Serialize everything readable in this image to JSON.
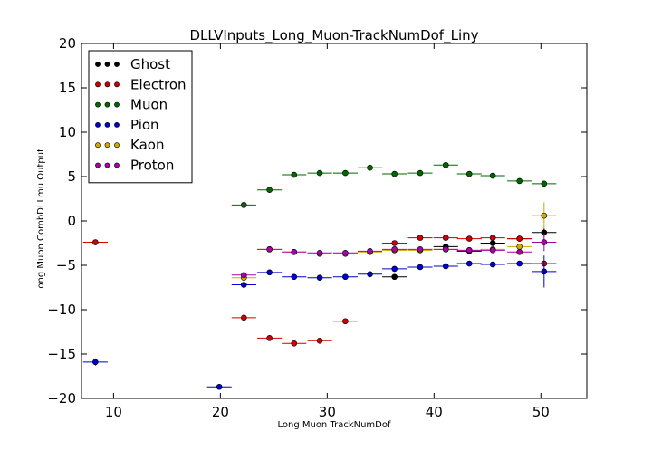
{
  "chart_data": {
    "type": "scatter",
    "title": "DLLVInputs_Long_Muon-TrackNumDof_Liny",
    "xlabel": "Long Muon TrackNumDof",
    "ylabel": "Long Muon CombDLLmu Output",
    "xlim": [
      7,
      54.3
    ],
    "ylim": [
      -20,
      20
    ],
    "xticks": [
      10,
      20,
      30,
      40,
      50
    ],
    "yticks": [
      -20,
      -15,
      -10,
      -5,
      0,
      5,
      10,
      15,
      20
    ],
    "xtick_labels": [
      "10",
      "20",
      "30",
      "40",
      "50"
    ],
    "ytick_labels": [
      "−20",
      "−15",
      "−10",
      "−5",
      "0",
      "5",
      "10",
      "15",
      "20"
    ],
    "grid": false,
    "legend_position": "upper-left",
    "bin_half_width": 1.15,
    "series": [
      {
        "name": "Ghost",
        "color": "#000000",
        "points": [
          {
            "x": 36.3,
            "y": -6.3,
            "yerr": 0.2
          },
          {
            "x": 41.1,
            "y": -2.9,
            "yerr": 0.2
          },
          {
            "x": 43.3,
            "y": -3.4,
            "yerr": 0.2
          },
          {
            "x": 45.5,
            "y": -2.5,
            "yerr": 0.2
          },
          {
            "x": 48.0,
            "y": -2.0,
            "yerr": 0.2
          },
          {
            "x": 50.3,
            "y": -1.3,
            "yerr": 0.5
          }
        ]
      },
      {
        "name": "Electron",
        "color": "#cc0000",
        "points": [
          {
            "x": 8.3,
            "y": -2.4,
            "yerr": 0.2
          },
          {
            "x": 22.2,
            "y": -10.9,
            "yerr": 0.2
          },
          {
            "x": 24.6,
            "y": -13.2,
            "yerr": 0.2
          },
          {
            "x": 26.9,
            "y": -13.8,
            "yerr": 0.2
          },
          {
            "x": 29.3,
            "y": -13.5,
            "yerr": 0.2
          },
          {
            "x": 31.7,
            "y": -11.3,
            "yerr": 0.2
          },
          {
            "x": 36.3,
            "y": -2.5,
            "yerr": 0.2
          },
          {
            "x": 38.7,
            "y": -1.9,
            "yerr": 0.2
          },
          {
            "x": 41.1,
            "y": -1.9,
            "yerr": 0.2
          },
          {
            "x": 43.3,
            "y": -2.0,
            "yerr": 0.2
          },
          {
            "x": 45.5,
            "y": -1.9,
            "yerr": 0.2
          },
          {
            "x": 48.0,
            "y": -2.0,
            "yerr": 0.2
          },
          {
            "x": 50.3,
            "y": -4.8,
            "yerr": 0.3
          }
        ]
      },
      {
        "name": "Muon",
        "color": "#006600",
        "points": [
          {
            "x": 22.2,
            "y": 1.8,
            "yerr": 0.1
          },
          {
            "x": 24.6,
            "y": 3.5,
            "yerr": 0.1
          },
          {
            "x": 26.9,
            "y": 5.2,
            "yerr": 0.1
          },
          {
            "x": 29.3,
            "y": 5.4,
            "yerr": 0.1
          },
          {
            "x": 31.7,
            "y": 5.4,
            "yerr": 0.1
          },
          {
            "x": 34.0,
            "y": 6.0,
            "yerr": 0.1
          },
          {
            "x": 36.3,
            "y": 5.3,
            "yerr": 0.1
          },
          {
            "x": 38.7,
            "y": 5.4,
            "yerr": 0.1
          },
          {
            "x": 41.1,
            "y": 6.3,
            "yerr": 0.1
          },
          {
            "x": 43.3,
            "y": 5.3,
            "yerr": 0.1
          },
          {
            "x": 45.5,
            "y": 5.1,
            "yerr": 0.1
          },
          {
            "x": 48.0,
            "y": 4.5,
            "yerr": 0.1
          },
          {
            "x": 50.3,
            "y": 4.2,
            "yerr": 0.1
          }
        ]
      },
      {
        "name": "Pion",
        "color": "#0000cc",
        "points": [
          {
            "x": 8.3,
            "y": -15.9,
            "yerr": 0.4
          },
          {
            "x": 19.9,
            "y": -18.7,
            "yerr": 0.2
          },
          {
            "x": 22.2,
            "y": -7.2,
            "yerr": 0.1
          },
          {
            "x": 24.6,
            "y": -5.8,
            "yerr": 0.1
          },
          {
            "x": 26.9,
            "y": -6.3,
            "yerr": 0.1
          },
          {
            "x": 29.3,
            "y": -6.4,
            "yerr": 0.1
          },
          {
            "x": 31.7,
            "y": -6.3,
            "yerr": 0.1
          },
          {
            "x": 34.0,
            "y": -6.0,
            "yerr": 0.1
          },
          {
            "x": 36.3,
            "y": -5.4,
            "yerr": 0.1
          },
          {
            "x": 38.7,
            "y": -5.2,
            "yerr": 0.1
          },
          {
            "x": 41.1,
            "y": -5.1,
            "yerr": 0.1
          },
          {
            "x": 43.3,
            "y": -4.8,
            "yerr": 0.1
          },
          {
            "x": 45.5,
            "y": -4.9,
            "yerr": 0.1
          },
          {
            "x": 48.0,
            "y": -4.8,
            "yerr": 0.1
          },
          {
            "x": 50.3,
            "y": -5.7,
            "yerr": 1.8
          }
        ]
      },
      {
        "name": "Kaon",
        "color": "#ccaa00",
        "points": [
          {
            "x": 22.2,
            "y": -6.4,
            "yerr": 0.2
          },
          {
            "x": 24.6,
            "y": -3.2,
            "yerr": 0.2
          },
          {
            "x": 26.9,
            "y": -3.5,
            "yerr": 0.1
          },
          {
            "x": 29.3,
            "y": -3.7,
            "yerr": 0.1
          },
          {
            "x": 31.7,
            "y": -3.7,
            "yerr": 0.1
          },
          {
            "x": 34.0,
            "y": -3.5,
            "yerr": 0.1
          },
          {
            "x": 36.3,
            "y": -3.3,
            "yerr": 0.1
          },
          {
            "x": 38.7,
            "y": -3.3,
            "yerr": 0.1
          },
          {
            "x": 41.1,
            "y": -3.2,
            "yerr": 0.1
          },
          {
            "x": 43.3,
            "y": -3.3,
            "yerr": 0.1
          },
          {
            "x": 45.5,
            "y": -3.2,
            "yerr": 0.1
          },
          {
            "x": 48.0,
            "y": -2.9,
            "yerr": 0.2
          },
          {
            "x": 50.3,
            "y": 0.6,
            "yerr": 1.5
          }
        ]
      },
      {
        "name": "Proton",
        "color": "#aa00aa",
        "points": [
          {
            "x": 22.2,
            "y": -6.1,
            "yerr": 0.2
          },
          {
            "x": 24.6,
            "y": -3.2,
            "yerr": 0.2
          },
          {
            "x": 26.9,
            "y": -3.5,
            "yerr": 0.1
          },
          {
            "x": 29.3,
            "y": -3.6,
            "yerr": 0.1
          },
          {
            "x": 31.7,
            "y": -3.6,
            "yerr": 0.1
          },
          {
            "x": 34.0,
            "y": -3.4,
            "yerr": 0.1
          },
          {
            "x": 36.3,
            "y": -3.2,
            "yerr": 0.1
          },
          {
            "x": 38.7,
            "y": -3.2,
            "yerr": 0.1
          },
          {
            "x": 41.1,
            "y": -3.2,
            "yerr": 0.1
          },
          {
            "x": 43.3,
            "y": -3.3,
            "yerr": 0.1
          },
          {
            "x": 45.5,
            "y": -3.3,
            "yerr": 0.1
          },
          {
            "x": 48.0,
            "y": -3.5,
            "yerr": 0.1
          },
          {
            "x": 50.3,
            "y": -2.4,
            "yerr": 1.0
          }
        ]
      }
    ]
  }
}
